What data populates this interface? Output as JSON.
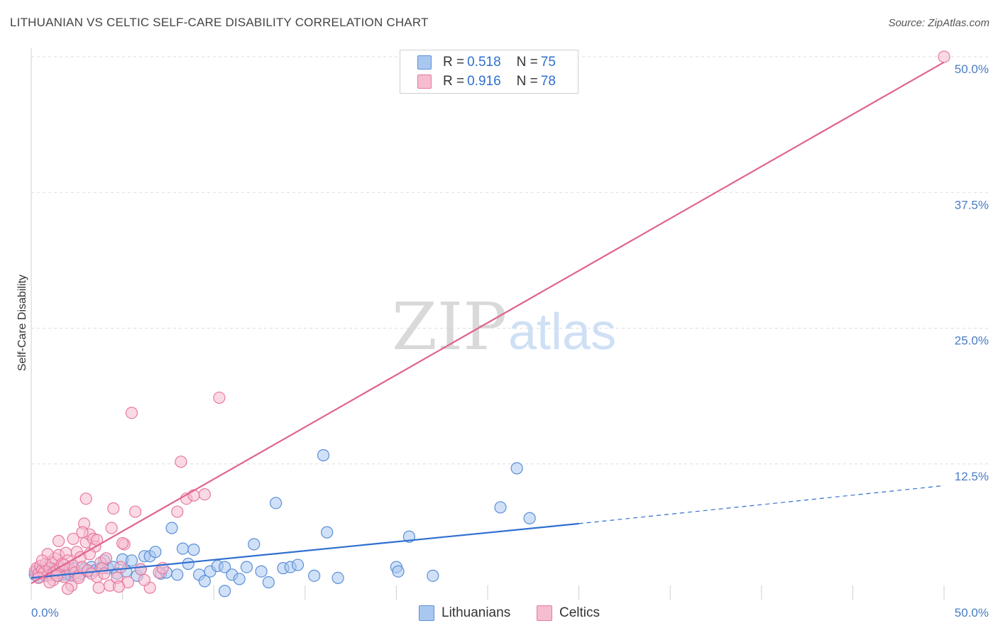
{
  "header": {
    "title": "LITHUANIAN VS CELTIC SELF-CARE DISABILITY CORRELATION CHART",
    "source": "Source: ZipAtlas.com"
  },
  "legend": {
    "rows": [
      {
        "r_label": "R = ",
        "r_value": "0.518",
        "n_label": "N = ",
        "n_value": "75"
      },
      {
        "r_label": "R = ",
        "r_value": "0.916",
        "n_label": "N = ",
        "n_value": "78"
      }
    ]
  },
  "bottom_legend": [
    "Lithuanians",
    "Celtics"
  ],
  "watermark": {
    "zip": "ZIP",
    "atlas": "atlas"
  },
  "colors": {
    "blue_fill": "#a9c8f0",
    "blue_stroke": "#5b8fd6",
    "blue_line": "#2f6fd0",
    "pink_fill": "#f6bcd0",
    "pink_stroke": "#e7799e",
    "pink_line": "#e0648f",
    "grid": "#dddddd",
    "tick_text": "#4a7cc4"
  },
  "chart_data": {
    "type": "scatter",
    "title": "LITHUANIAN VS CELTIC SELF-CARE DISABILITY CORRELATION CHART",
    "xlabel": "",
    "ylabel": "Self-Care Disability",
    "xlim": [
      0,
      50
    ],
    "ylim": [
      0,
      50
    ],
    "x_tick_labels": [
      "0.0%",
      "50.0%"
    ],
    "y_ticks": [
      12.5,
      25.0,
      37.5,
      50.0
    ],
    "y_tick_labels": [
      "12.5%",
      "25.0%",
      "37.5%",
      "50.0%"
    ],
    "series": [
      {
        "name": "Lithuanians",
        "r": 0.518,
        "n": 75,
        "trend": {
          "x0": 0,
          "y0": 2.0,
          "x1": 30,
          "y1": 7.0,
          "dash_x1": 50,
          "dash_y1": 10.5
        },
        "points": [
          [
            0.2,
            2.3
          ],
          [
            0.3,
            2.6
          ],
          [
            0.4,
            2.1
          ],
          [
            0.5,
            2.8
          ],
          [
            0.6,
            2.4
          ],
          [
            0.7,
            2.5
          ],
          [
            0.8,
            2.2
          ],
          [
            0.9,
            2.7
          ],
          [
            1.0,
            2.3
          ],
          [
            1.1,
            2.5
          ],
          [
            1.2,
            2.9
          ],
          [
            1.3,
            2.4
          ],
          [
            1.4,
            2.6
          ],
          [
            1.5,
            2.2
          ],
          [
            1.6,
            2.8
          ],
          [
            1.7,
            2.5
          ],
          [
            1.8,
            2.3
          ],
          [
            1.9,
            2.7
          ],
          [
            2.0,
            2.4
          ],
          [
            2.1,
            2.6
          ],
          [
            2.2,
            2.2
          ],
          [
            2.3,
            2.9
          ],
          [
            2.5,
            2.5
          ],
          [
            2.7,
            2.4
          ],
          [
            2.9,
            2.8
          ],
          [
            3.1,
            2.6
          ],
          [
            3.3,
            3.0
          ],
          [
            3.5,
            2.7
          ],
          [
            3.8,
            2.9
          ],
          [
            4.0,
            3.6
          ],
          [
            4.2,
            2.9
          ],
          [
            4.5,
            3.0
          ],
          [
            4.7,
            2.4
          ],
          [
            5.0,
            3.7
          ],
          [
            5.2,
            2.6
          ],
          [
            5.5,
            3.6
          ],
          [
            5.8,
            2.2
          ],
          [
            6.0,
            2.8
          ],
          [
            6.2,
            4.0
          ],
          [
            6.5,
            4.0
          ],
          [
            6.8,
            4.4
          ],
          [
            7.1,
            2.4
          ],
          [
            7.4,
            2.5
          ],
          [
            7.7,
            6.6
          ],
          [
            8.0,
            2.3
          ],
          [
            8.3,
            4.7
          ],
          [
            8.6,
            3.3
          ],
          [
            8.9,
            4.6
          ],
          [
            9.2,
            2.3
          ],
          [
            9.5,
            1.7
          ],
          [
            9.8,
            2.6
          ],
          [
            10.2,
            3.1
          ],
          [
            10.6,
            3.0
          ],
          [
            11.0,
            2.3
          ],
          [
            11.4,
            1.9
          ],
          [
            11.8,
            3.0
          ],
          [
            12.2,
            5.1
          ],
          [
            12.6,
            2.6
          ],
          [
            13.0,
            1.6
          ],
          [
            13.4,
            8.9
          ],
          [
            13.8,
            2.9
          ],
          [
            14.2,
            3.0
          ],
          [
            14.6,
            3.2
          ],
          [
            15.5,
            2.2
          ],
          [
            16.0,
            13.3
          ],
          [
            16.2,
            6.2
          ],
          [
            16.8,
            2.0
          ],
          [
            20.0,
            3.0
          ],
          [
            20.1,
            2.6
          ],
          [
            20.7,
            5.8
          ],
          [
            22.0,
            2.2
          ],
          [
            25.7,
            8.5
          ],
          [
            26.6,
            12.1
          ],
          [
            27.3,
            7.5
          ],
          [
            10.6,
            0.8
          ]
        ]
      },
      {
        "name": "Celtics",
        "r": 0.916,
        "n": 78,
        "trend": {
          "x0": 0,
          "y0": 1.5,
          "x1": 50,
          "y1": 49.5
        },
        "points": [
          [
            0.2,
            2.6
          ],
          [
            0.3,
            2.9
          ],
          [
            0.4,
            2.4
          ],
          [
            0.5,
            3.1
          ],
          [
            0.6,
            2.7
          ],
          [
            0.7,
            2.5
          ],
          [
            0.8,
            3.3
          ],
          [
            0.9,
            2.2
          ],
          [
            1.0,
            2.9
          ],
          [
            1.1,
            3.5
          ],
          [
            1.2,
            2.4
          ],
          [
            1.3,
            3.8
          ],
          [
            1.4,
            2.7
          ],
          [
            1.5,
            4.1
          ],
          [
            1.6,
            3.0
          ],
          [
            1.7,
            3.3
          ],
          [
            1.8,
            2.1
          ],
          [
            1.9,
            4.3
          ],
          [
            2.0,
            3.6
          ],
          [
            2.1,
            2.8
          ],
          [
            2.2,
            1.3
          ],
          [
            2.3,
            3.1
          ],
          [
            2.4,
            2.5
          ],
          [
            2.5,
            4.4
          ],
          [
            2.6,
            2.2
          ],
          [
            2.7,
            3.9
          ],
          [
            2.8,
            3.0
          ],
          [
            2.9,
            7.0
          ],
          [
            3.0,
            5.3
          ],
          [
            3.1,
            2.7
          ],
          [
            3.2,
            6.0
          ],
          [
            3.3,
            2.4
          ],
          [
            3.4,
            5.6
          ],
          [
            3.5,
            4.9
          ],
          [
            3.6,
            2.1
          ],
          [
            3.7,
            1.1
          ],
          [
            3.8,
            3.4
          ],
          [
            3.9,
            2.9
          ],
          [
            4.0,
            2.4
          ],
          [
            4.1,
            3.8
          ],
          [
            4.3,
            1.3
          ],
          [
            4.4,
            6.6
          ],
          [
            4.5,
            8.4
          ],
          [
            4.7,
            2.0
          ],
          [
            4.9,
            3.0
          ],
          [
            5.1,
            5.1
          ],
          [
            5.3,
            1.6
          ],
          [
            5.5,
            17.2
          ],
          [
            5.7,
            8.1
          ],
          [
            6.0,
            2.8
          ],
          [
            6.5,
            1.1
          ],
          [
            7.0,
            2.5
          ],
          [
            8.0,
            8.1
          ],
          [
            8.2,
            12.7
          ],
          [
            8.5,
            9.3
          ],
          [
            8.9,
            9.6
          ],
          [
            9.5,
            9.7
          ],
          [
            10.3,
            18.6
          ],
          [
            1.2,
            1.8
          ],
          [
            1.5,
            5.4
          ],
          [
            2.0,
            1.0
          ],
          [
            2.3,
            5.6
          ],
          [
            2.6,
            2.0
          ],
          [
            3.0,
            9.3
          ],
          [
            3.2,
            4.2
          ],
          [
            0.9,
            4.2
          ],
          [
            1.8,
            3.2
          ],
          [
            4.8,
            1.2
          ],
          [
            0.4,
            2.0
          ],
          [
            0.6,
            3.6
          ],
          [
            1.0,
            1.6
          ],
          [
            1.4,
            2.2
          ],
          [
            2.8,
            6.2
          ],
          [
            3.6,
            5.5
          ],
          [
            5.0,
            5.2
          ],
          [
            6.2,
            1.8
          ],
          [
            7.2,
            2.9
          ],
          [
            50.0,
            50.0
          ]
        ]
      }
    ]
  }
}
